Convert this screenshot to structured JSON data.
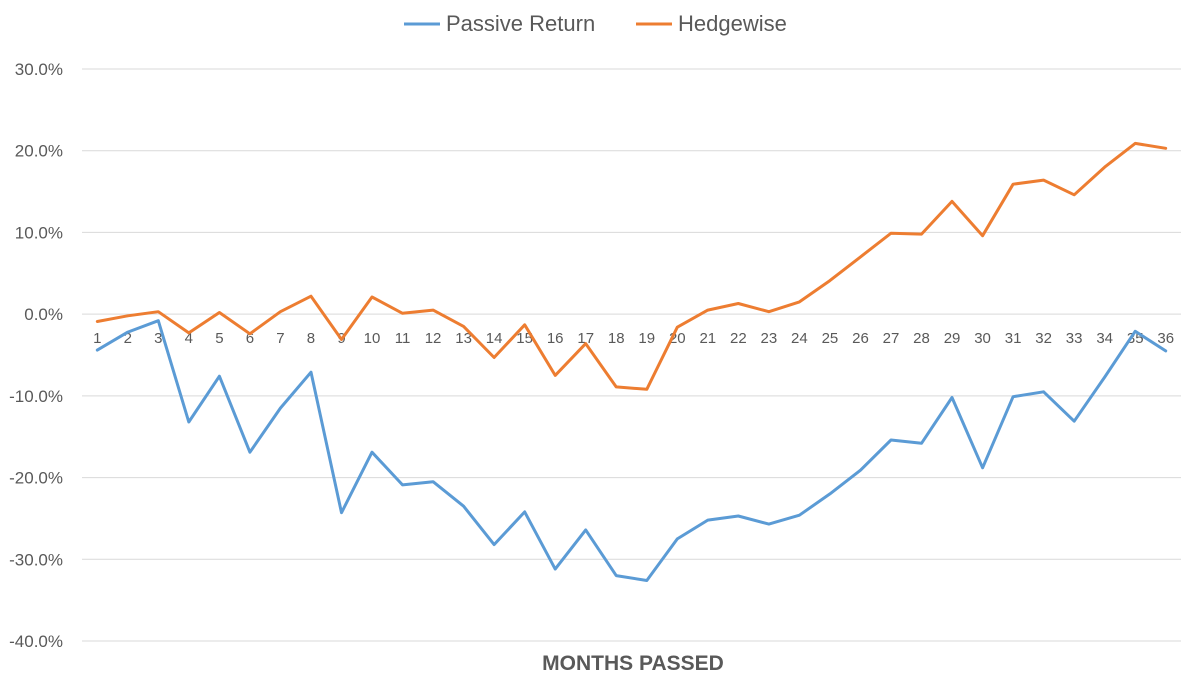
{
  "chart_data": {
    "type": "line",
    "title": "",
    "xlabel": "MONTHS PASSED",
    "ylabel": "",
    "x": [
      1,
      2,
      3,
      4,
      5,
      6,
      7,
      8,
      9,
      10,
      11,
      12,
      13,
      14,
      15,
      16,
      17,
      18,
      19,
      20,
      21,
      22,
      23,
      24,
      25,
      26,
      27,
      28,
      29,
      30,
      31,
      32,
      33,
      34,
      35,
      36
    ],
    "ylim": [
      -40,
      30
    ],
    "y_ticks": [
      30,
      20,
      10,
      0,
      -10,
      -20,
      -30,
      -40
    ],
    "y_tick_labels": [
      "30.0%",
      "20.0%",
      "10.0%",
      "0.0%",
      "-10.0%",
      "-20.0%",
      "-30.0%",
      "-40.0%"
    ],
    "grid": true,
    "legend_position": "top",
    "series": [
      {
        "name": "Passive Return",
        "color": "#5B9BD5",
        "values": [
          -4.4,
          -2.2,
          -0.8,
          -13.2,
          -7.6,
          -16.9,
          -11.5,
          -7.1,
          -24.3,
          -16.9,
          -20.9,
          -20.5,
          -23.5,
          -28.2,
          -24.2,
          -31.2,
          -26.4,
          -32.0,
          -32.6,
          -27.5,
          -25.2,
          -24.7,
          -25.7,
          -24.6,
          -22.0,
          -19.1,
          -15.4,
          -15.8,
          -10.2,
          -18.8,
          -10.1,
          -9.5,
          -13.1,
          -7.7,
          -2.1,
          -4.5
        ]
      },
      {
        "name": "Hedgewise",
        "color": "#ED7D31",
        "values": [
          -0.9,
          -0.2,
          0.3,
          -2.3,
          0.2,
          -2.4,
          0.3,
          2.2,
          -3.1,
          2.1,
          0.1,
          0.5,
          -1.5,
          -5.3,
          -1.3,
          -7.5,
          -3.6,
          -8.9,
          -9.2,
          -1.6,
          0.5,
          1.3,
          0.3,
          1.5,
          4.1,
          7.0,
          9.9,
          9.8,
          13.8,
          9.6,
          15.9,
          16.4,
          14.6,
          18.0,
          20.9,
          20.3
        ]
      }
    ]
  }
}
